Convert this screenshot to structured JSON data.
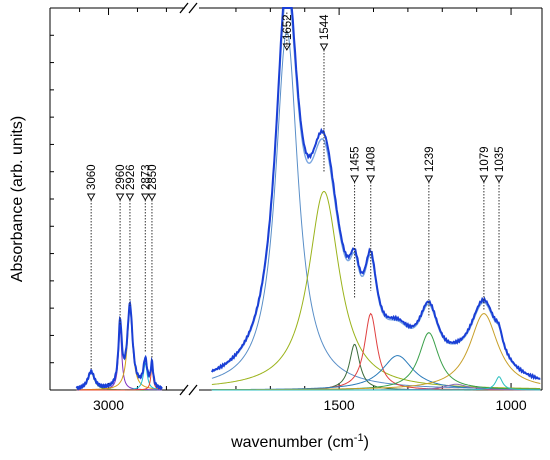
{
  "chart_data": {
    "type": "line",
    "title": "",
    "xlabel": "wavenumber (cm",
    "xlabel_sup": "-1",
    "xlabel_close": ")",
    "ylabel": "Absorbance (arb. units)",
    "x_axis": "reversed, broken",
    "left_panel": {
      "xlim": [
        3140,
        2760
      ],
      "ticks": [
        {
          "value": 3000,
          "label": "3000"
        }
      ],
      "minor_ticks": [
        3100,
        2900,
        2800
      ]
    },
    "right_panel": {
      "xlim": [
        1890,
        910
      ],
      "ticks": [
        {
          "value": 1500,
          "label": "1500"
        },
        {
          "value": 1000,
          "label": "1000"
        }
      ],
      "minor_ticks": [
        1800,
        1700,
        1600,
        1400,
        1300,
        1200,
        1100
      ]
    },
    "ylim": [
      0,
      1.0
    ],
    "y_minor_ticks": 14,
    "peak_labels": [
      {
        "wavenumber": 3060,
        "label": "3060",
        "height": 0.055
      },
      {
        "wavenumber": 2960,
        "label": "2960",
        "height": 0.17
      },
      {
        "wavenumber": 2926,
        "label": "2926",
        "height": 0.22
      },
      {
        "wavenumber": 2873,
        "label": "2873",
        "height": 0.1
      },
      {
        "wavenumber": 2850,
        "label": "2850",
        "height": 0.08
      },
      {
        "wavenumber": 1652,
        "label": "1652",
        "height": 0.99
      },
      {
        "wavenumber": 1544,
        "label": "1544",
        "height": 0.57
      },
      {
        "wavenumber": 1455,
        "label": "1455",
        "height": 0.24
      },
      {
        "wavenumber": 1408,
        "label": "1408",
        "height": 0.26
      },
      {
        "wavenumber": 1239,
        "label": "1239",
        "height": 0.19
      },
      {
        "wavenumber": 1079,
        "label": "1079",
        "height": 0.21
      },
      {
        "wavenumber": 1035,
        "label": "1035",
        "height": 0.21
      }
    ],
    "fit_components": [
      {
        "panel": "left",
        "center": 3060,
        "height": 0.045,
        "width": 14,
        "color": "#2ca02c"
      },
      {
        "panel": "left",
        "center": 2960,
        "height": 0.16,
        "width": 7,
        "color": "#7b2fbf"
      },
      {
        "panel": "left",
        "center": 2926,
        "height": 0.21,
        "width": 11,
        "color": "#d4a017"
      },
      {
        "panel": "left",
        "center": 2873,
        "height": 0.07,
        "width": 8,
        "color": "#17becf"
      },
      {
        "panel": "left",
        "center": 2850,
        "height": 0.06,
        "width": 5,
        "color": "#e8462a"
      },
      {
        "panel": "right",
        "center": 1652,
        "height": 0.94,
        "width": 40,
        "color": "#5a8fc8"
      },
      {
        "panel": "right",
        "center": 1544,
        "height": 0.52,
        "width": 55,
        "color": "#9bb31b"
      },
      {
        "panel": "right",
        "center": 1455,
        "height": 0.12,
        "width": 18,
        "color": "#3a6b3a"
      },
      {
        "panel": "right",
        "center": 1408,
        "height": 0.2,
        "width": 22,
        "color": "#e04040"
      },
      {
        "panel": "right",
        "center": 1330,
        "height": 0.09,
        "width": 55,
        "color": "#2b7bba"
      },
      {
        "panel": "right",
        "center": 1239,
        "height": 0.15,
        "width": 35,
        "color": "#3aa04a"
      },
      {
        "panel": "right",
        "center": 1160,
        "height": 0.015,
        "width": 40,
        "color": "#8c6bb1"
      },
      {
        "panel": "right",
        "center": 1079,
        "height": 0.2,
        "width": 50,
        "color": "#c8a02a"
      },
      {
        "panel": "right",
        "center": 1035,
        "height": 0.035,
        "width": 12,
        "color": "#2cc0c0"
      }
    ],
    "colors": {
      "experimental": "#1a3fd6",
      "fit_sum": "#7aa6e0",
      "axis": "#000000",
      "label_line": "#333333"
    }
  }
}
